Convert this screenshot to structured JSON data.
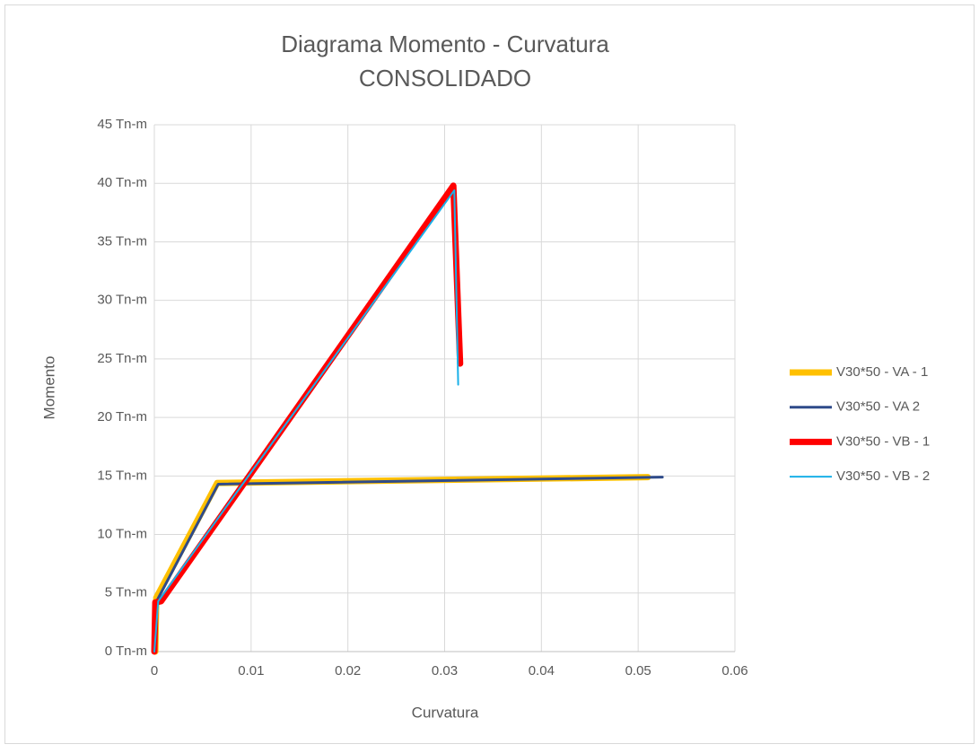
{
  "chart_data": {
    "type": "line",
    "title": "Diagrama Momento - Curvatura",
    "subtitle": "CONSOLIDADO",
    "x_label": "Curvatura",
    "y_label": "Momento",
    "xlim": [
      0,
      0.06
    ],
    "xticks": [
      0,
      0.01,
      0.02,
      0.03,
      0.04,
      0.05,
      0.06
    ],
    "ylim": [
      0,
      45
    ],
    "yticks": [
      {
        "value": 0,
        "label": "0 Tn-m"
      },
      {
        "value": 5,
        "label": "5 Tn-m"
      },
      {
        "value": 10,
        "label": "10 Tn-m"
      },
      {
        "value": 15,
        "label": "15 Tn-m"
      },
      {
        "value": 20,
        "label": "20 Tn-m"
      },
      {
        "value": 25,
        "label": "25 Tn-m"
      },
      {
        "value": 30,
        "label": "30 Tn-m"
      },
      {
        "value": 35,
        "label": "35 Tn-m"
      },
      {
        "value": 40,
        "label": "40 Tn-m"
      },
      {
        "value": 45,
        "label": "45 Tn-m"
      }
    ],
    "grid": true,
    "legend": "right",
    "series": [
      {
        "name": "V30*50 - VA - 1",
        "color": "#ffc000",
        "x": [
          0.0001,
          0.0002,
          0.0065,
          0.051
        ],
        "values": [
          0,
          4.6,
          14.4,
          14.9
        ]
      },
      {
        "name": "V30*50 - VA  2",
        "color": "#2f4b8a",
        "x": [
          0,
          0.0003,
          0.0066,
          0.0525
        ],
        "values": [
          0,
          4.4,
          14.3,
          14.9
        ]
      },
      {
        "name": "V30*50 - VB - 1",
        "color": "#ff0000",
        "x": [
          0,
          0.0001,
          0.0007,
          0.0309,
          0.0316
        ],
        "values": [
          0,
          4.2,
          4.3,
          39.8,
          24.6
        ]
      },
      {
        "name": "V30*50 - VB - 2",
        "color": "#1ab0e8",
        "x": [
          0,
          0.0004,
          0.031,
          0.0314
        ],
        "values": [
          0,
          4.3,
          39.4,
          22.8
        ]
      }
    ]
  }
}
